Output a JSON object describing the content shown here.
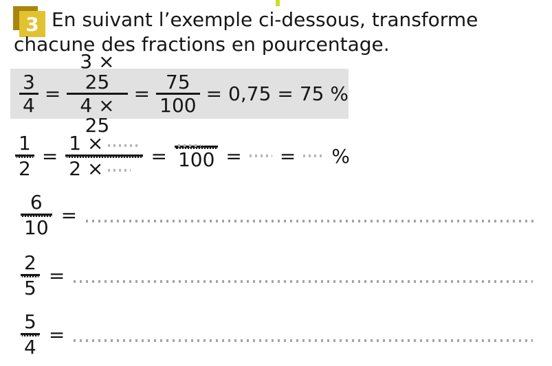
{
  "colors": {
    "badge_front": "#e2c230",
    "badge_back": "#a8860d",
    "example_background": "#e1e1e1",
    "placeholder_dots": "#b0b0b0",
    "text": "#161616",
    "top_mark": "#ccdf2a"
  },
  "badge": {
    "number": "3"
  },
  "heading": {
    "line1": "En suivant l’exemple ci-dessous, transforme",
    "line2": "chacune des fractions en pourcentage."
  },
  "symbols": {
    "eq": "=",
    "percent": "%"
  },
  "example": {
    "f1": {
      "num": "3",
      "den": "4"
    },
    "f2": {
      "num": "3 × 25",
      "den": "4 × 25"
    },
    "f3": {
      "num": "75",
      "den": "100"
    },
    "decimal": "0,75",
    "result": "75 %"
  },
  "guided": {
    "f1": {
      "num": "1",
      "den": "2"
    },
    "f2": {
      "num_prefix": "1 ×",
      "den_prefix": "2 ×"
    },
    "f3": {
      "den": "100"
    },
    "percent": "%"
  },
  "exercises": [
    {
      "num": "6",
      "den": "10"
    },
    {
      "num": "2",
      "den": "5"
    },
    {
      "num": "5",
      "den": "4"
    }
  ]
}
